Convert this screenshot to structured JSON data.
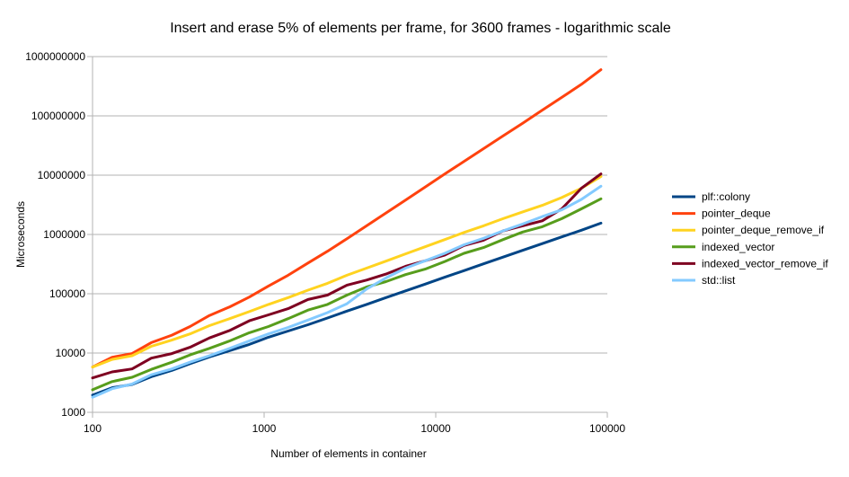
{
  "chart_data": {
    "type": "line",
    "title": "Insert and erase 5% of elements per frame, for 3600 frames - logarithmic scale",
    "xlabel": "Number of elements in container",
    "ylabel": "Microseconds",
    "x_scale": "log",
    "y_scale": "log",
    "xlim": [
      100,
      100000
    ],
    "ylim": [
      1000,
      1000000000
    ],
    "x_ticks": [
      100,
      1000,
      10000,
      100000
    ],
    "x_tick_labels": [
      "100",
      "1000",
      "10000",
      "100000"
    ],
    "y_ticks": [
      1000,
      10000,
      100000,
      1000000,
      10000000,
      100000000,
      1000000000
    ],
    "y_tick_labels": [
      "1000",
      "10000",
      "100000",
      "1000000",
      "10000000",
      "100000000",
      "1000000000"
    ],
    "grid": "horizontal",
    "legend_position": "right",
    "x": [
      100,
      130,
      170,
      220,
      290,
      370,
      480,
      630,
      820,
      1060,
      1380,
      1800,
      2340,
      3040,
      3950,
      5130,
      6670,
      8670,
      11300,
      14600,
      19000,
      24700,
      32100,
      41800,
      54300,
      70600,
      91800
    ],
    "series": [
      {
        "name": "plf::colony",
        "color": "#004586",
        "values": [
          1950,
          2600,
          2950,
          4000,
          5100,
          6600,
          8600,
          11000,
          14000,
          18500,
          23500,
          30000,
          39000,
          51000,
          66000,
          86000,
          112000,
          145000,
          190000,
          245000,
          320000,
          415000,
          540000,
          700000,
          910000,
          1180000,
          1550000
        ]
      },
      {
        "name": "pointer_deque",
        "color": "#ff420e",
        "values": [
          5800,
          8500,
          9800,
          15000,
          20000,
          28000,
          43000,
          60000,
          88000,
          135000,
          205000,
          330000,
          520000,
          850000,
          1400000,
          2300000,
          3800000,
          6300000,
          10500000,
          17000000,
          28000000,
          46000000,
          75000000,
          125000000,
          205000000,
          340000000,
          600000000
        ]
      },
      {
        "name": "pointer_deque_remove_if",
        "color": "#ffd320",
        "values": [
          5800,
          7800,
          9000,
          13000,
          16500,
          21000,
          29000,
          38000,
          50000,
          66000,
          86000,
          115000,
          150000,
          205000,
          270000,
          355000,
          470000,
          620000,
          820000,
          1080000,
          1400000,
          1850000,
          2400000,
          3100000,
          4200000,
          6000000,
          9500000
        ]
      },
      {
        "name": "indexed_vector",
        "color": "#579d1c",
        "values": [
          2400,
          3300,
          3900,
          5300,
          7000,
          9300,
          12000,
          16000,
          22000,
          28000,
          38000,
          53000,
          66000,
          95000,
          130000,
          160000,
          210000,
          260000,
          350000,
          480000,
          600000,
          820000,
          1100000,
          1350000,
          1850000,
          2700000,
          4000000
        ]
      },
      {
        "name": "indexed_vector_remove_if",
        "color": "#7e0021",
        "values": [
          3800,
          4800,
          5400,
          8200,
          9800,
          12500,
          18000,
          24000,
          35000,
          44000,
          56000,
          80000,
          95000,
          140000,
          170000,
          215000,
          290000,
          360000,
          450000,
          650000,
          800000,
          1150000,
          1400000,
          1700000,
          2700000,
          6000000,
          10500000
        ]
      },
      {
        "name": "std::list",
        "color": "#83caff",
        "values": [
          1800,
          2500,
          3000,
          4300,
          5400,
          7000,
          9000,
          12000,
          16000,
          21000,
          27000,
          36000,
          48000,
          68000,
          120000,
          185000,
          270000,
          360000,
          480000,
          670000,
          860000,
          1150000,
          1500000,
          2000000,
          2600000,
          3900000,
          6500000
        ]
      }
    ]
  }
}
